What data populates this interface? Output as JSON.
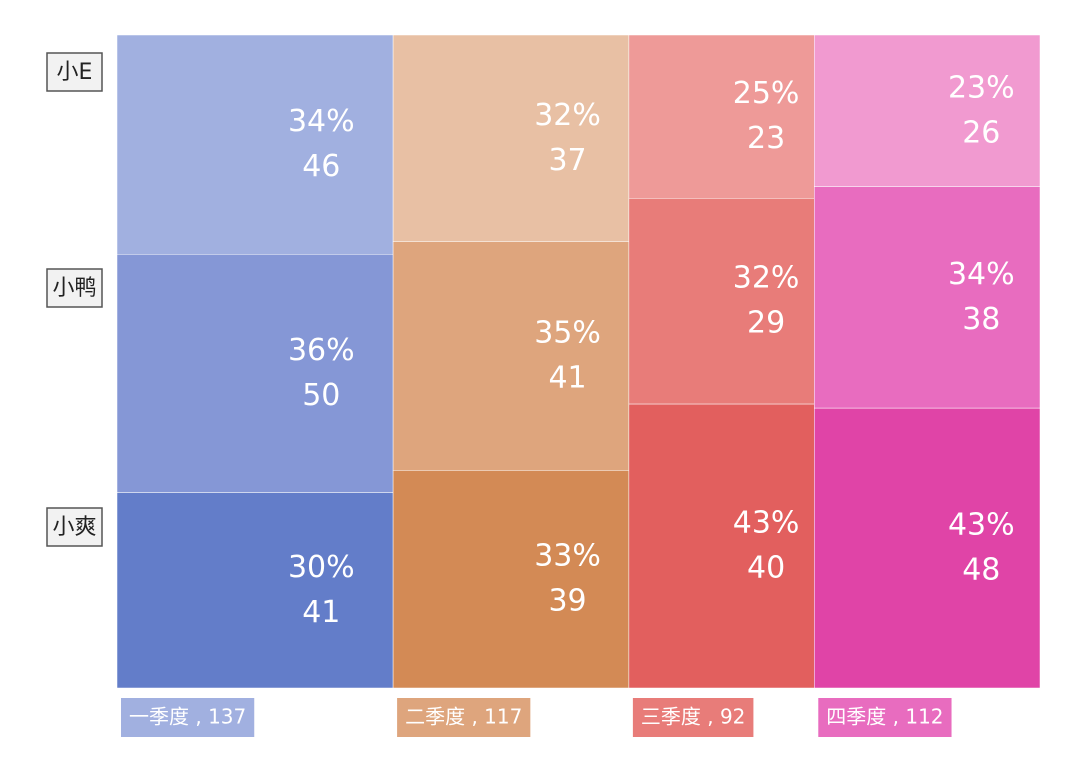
{
  "chart_data": {
    "type": "mekko",
    "categories": [
      "一季度 , 137",
      "二季度 , 117",
      "三季度 , 92",
      "四季度 , 112"
    ],
    "category_colors": [
      "#a1b0e0",
      "#dea57d",
      "#e87c79",
      "#e86cbf"
    ],
    "series": [
      {
        "name": "小E",
        "values": [
          46,
          37,
          23,
          26
        ],
        "share_labels": [
          "34%",
          "32%",
          "25%",
          "23%"
        ],
        "colors": [
          "#a1b0e0",
          "#e8c0a4",
          "#ee9a98",
          "#f19ad0"
        ]
      },
      {
        "name": "小鸭",
        "values": [
          50,
          41,
          29,
          38
        ],
        "share_labels": [
          "36%",
          "35%",
          "32%",
          "34%"
        ],
        "colors": [
          "#8597d6",
          "#dea57d",
          "#e87c79",
          "#e86cbf"
        ]
      },
      {
        "name": "小爽",
        "values": [
          41,
          39,
          40,
          48
        ],
        "share_labels": [
          "30%",
          "33%",
          "43%",
          "43%"
        ],
        "colors": [
          "#637dc9",
          "#d38a55",
          "#e25f5e",
          "#e044a7"
        ]
      }
    ]
  }
}
